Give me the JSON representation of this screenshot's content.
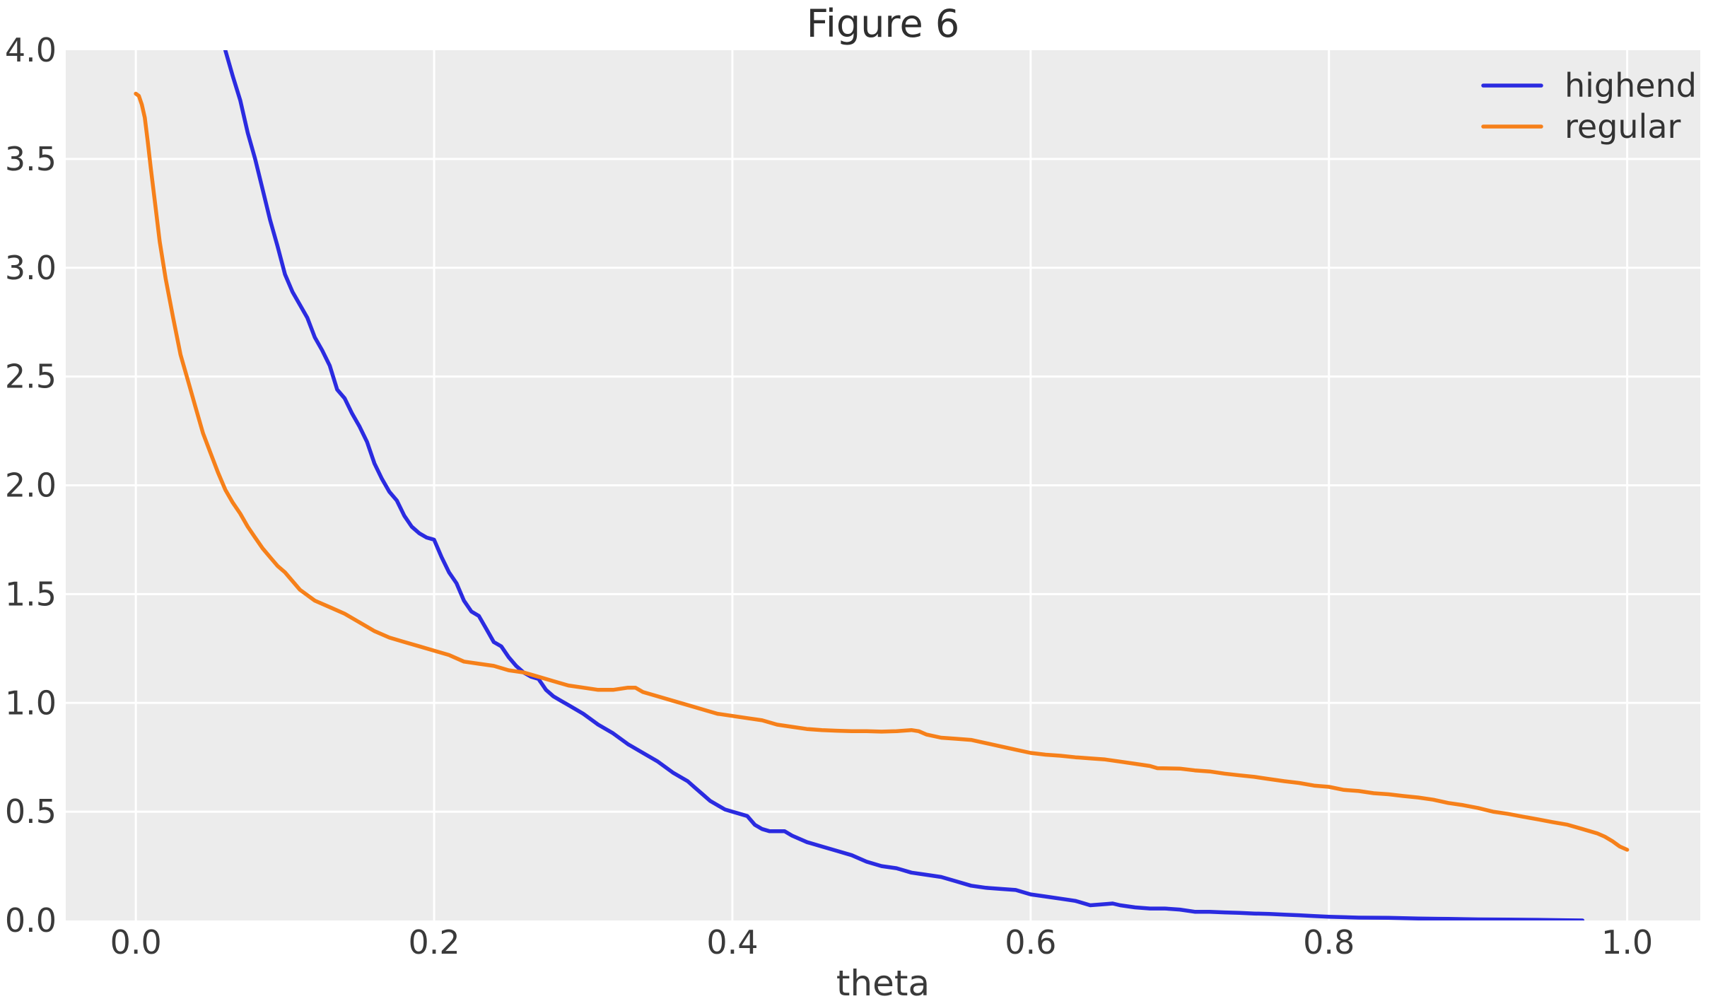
{
  "figure": {
    "title": "Figure 6"
  },
  "chart_data": {
    "type": "line",
    "title": "Figure 6",
    "xlabel": "theta",
    "ylabel": "",
    "xlim": [
      -0.047,
      1.049
    ],
    "ylim": [
      0,
      4
    ],
    "xticks": [
      0.0,
      0.2,
      0.4,
      0.6,
      0.8,
      1.0
    ],
    "yticks": [
      0.0,
      0.5,
      1.0,
      1.5,
      2.0,
      2.5,
      3.0,
      3.5,
      4.0
    ],
    "grid": true,
    "legend_position": "upper right",
    "colors": {
      "plot_bg": "#ececec",
      "grid": "#ffffff",
      "tick_text": "#3a3a3a",
      "title_text": "#2f2f2f"
    },
    "series": [
      {
        "name": "highend",
        "color": "#2b2be0",
        "points": [
          [
            0.057,
            4.1
          ],
          [
            0.06,
            4.0
          ],
          [
            0.065,
            3.88
          ],
          [
            0.07,
            3.77
          ],
          [
            0.075,
            3.62
          ],
          [
            0.08,
            3.5
          ],
          [
            0.085,
            3.36
          ],
          [
            0.09,
            3.22
          ],
          [
            0.095,
            3.1
          ],
          [
            0.1,
            2.97
          ],
          [
            0.105,
            2.89
          ],
          [
            0.11,
            2.83
          ],
          [
            0.115,
            2.77
          ],
          [
            0.12,
            2.68
          ],
          [
            0.125,
            2.62
          ],
          [
            0.13,
            2.55
          ],
          [
            0.135,
            2.44
          ],
          [
            0.14,
            2.4
          ],
          [
            0.145,
            2.33
          ],
          [
            0.15,
            2.27
          ],
          [
            0.155,
            2.2
          ],
          [
            0.16,
            2.1
          ],
          [
            0.165,
            2.03
          ],
          [
            0.17,
            1.97
          ],
          [
            0.175,
            1.93
          ],
          [
            0.18,
            1.86
          ],
          [
            0.185,
            1.81
          ],
          [
            0.19,
            1.78
          ],
          [
            0.195,
            1.76
          ],
          [
            0.2,
            1.75
          ],
          [
            0.205,
            1.67
          ],
          [
            0.21,
            1.6
          ],
          [
            0.215,
            1.55
          ],
          [
            0.22,
            1.47
          ],
          [
            0.225,
            1.42
          ],
          [
            0.23,
            1.4
          ],
          [
            0.235,
            1.34
          ],
          [
            0.24,
            1.28
          ],
          [
            0.245,
            1.26
          ],
          [
            0.25,
            1.21
          ],
          [
            0.255,
            1.17
          ],
          [
            0.26,
            1.14
          ],
          [
            0.265,
            1.12
          ],
          [
            0.27,
            1.11
          ],
          [
            0.275,
            1.06
          ],
          [
            0.28,
            1.03
          ],
          [
            0.285,
            1.01
          ],
          [
            0.29,
            0.99
          ],
          [
            0.3,
            0.95
          ],
          [
            0.31,
            0.9
          ],
          [
            0.32,
            0.86
          ],
          [
            0.33,
            0.81
          ],
          [
            0.34,
            0.77
          ],
          [
            0.35,
            0.73
          ],
          [
            0.36,
            0.68
          ],
          [
            0.365,
            0.66
          ],
          [
            0.37,
            0.64
          ],
          [
            0.375,
            0.61
          ],
          [
            0.38,
            0.58
          ],
          [
            0.385,
            0.55
          ],
          [
            0.39,
            0.53
          ],
          [
            0.395,
            0.51
          ],
          [
            0.4,
            0.5
          ],
          [
            0.405,
            0.49
          ],
          [
            0.41,
            0.48
          ],
          [
            0.415,
            0.44
          ],
          [
            0.42,
            0.42
          ],
          [
            0.425,
            0.41
          ],
          [
            0.43,
            0.41
          ],
          [
            0.435,
            0.41
          ],
          [
            0.44,
            0.39
          ],
          [
            0.45,
            0.36
          ],
          [
            0.46,
            0.34
          ],
          [
            0.47,
            0.32
          ],
          [
            0.48,
            0.3
          ],
          [
            0.49,
            0.27
          ],
          [
            0.5,
            0.25
          ],
          [
            0.51,
            0.24
          ],
          [
            0.52,
            0.22
          ],
          [
            0.53,
            0.21
          ],
          [
            0.54,
            0.2
          ],
          [
            0.55,
            0.18
          ],
          [
            0.56,
            0.16
          ],
          [
            0.57,
            0.15
          ],
          [
            0.58,
            0.145
          ],
          [
            0.59,
            0.14
          ],
          [
            0.6,
            0.12
          ],
          [
            0.61,
            0.11
          ],
          [
            0.62,
            0.1
          ],
          [
            0.63,
            0.09
          ],
          [
            0.64,
            0.07
          ],
          [
            0.65,
            0.075
          ],
          [
            0.655,
            0.078
          ],
          [
            0.66,
            0.07
          ],
          [
            0.67,
            0.06
          ],
          [
            0.68,
            0.055
          ],
          [
            0.69,
            0.055
          ],
          [
            0.7,
            0.05
          ],
          [
            0.71,
            0.04
          ],
          [
            0.72,
            0.04
          ],
          [
            0.73,
            0.037
          ],
          [
            0.74,
            0.035
          ],
          [
            0.75,
            0.032
          ],
          [
            0.76,
            0.03
          ],
          [
            0.77,
            0.027
          ],
          [
            0.78,
            0.024
          ],
          [
            0.79,
            0.02
          ],
          [
            0.8,
            0.017
          ],
          [
            0.82,
            0.013
          ],
          [
            0.84,
            0.012
          ],
          [
            0.86,
            0.009
          ],
          [
            0.88,
            0.007
          ],
          [
            0.9,
            0.005
          ],
          [
            0.92,
            0.004
          ],
          [
            0.94,
            0.003
          ],
          [
            0.96,
            0.001
          ],
          [
            0.97,
            0.0
          ]
        ]
      },
      {
        "name": "regular",
        "color": "#f6801a",
        "points": [
          [
            0.0,
            3.8
          ],
          [
            0.002,
            3.79
          ],
          [
            0.004,
            3.75
          ],
          [
            0.006,
            3.69
          ],
          [
            0.008,
            3.58
          ],
          [
            0.01,
            3.46
          ],
          [
            0.013,
            3.29
          ],
          [
            0.016,
            3.12
          ],
          [
            0.02,
            2.95
          ],
          [
            0.025,
            2.77
          ],
          [
            0.03,
            2.6
          ],
          [
            0.035,
            2.48
          ],
          [
            0.04,
            2.36
          ],
          [
            0.045,
            2.24
          ],
          [
            0.05,
            2.15
          ],
          [
            0.055,
            2.06
          ],
          [
            0.06,
            1.98
          ],
          [
            0.065,
            1.92
          ],
          [
            0.07,
            1.87
          ],
          [
            0.075,
            1.81
          ],
          [
            0.08,
            1.76
          ],
          [
            0.085,
            1.71
          ],
          [
            0.09,
            1.67
          ],
          [
            0.095,
            1.63
          ],
          [
            0.1,
            1.6
          ],
          [
            0.11,
            1.52
          ],
          [
            0.12,
            1.47
          ],
          [
            0.13,
            1.44
          ],
          [
            0.14,
            1.41
          ],
          [
            0.15,
            1.37
          ],
          [
            0.16,
            1.33
          ],
          [
            0.17,
            1.3
          ],
          [
            0.18,
            1.28
          ],
          [
            0.19,
            1.26
          ],
          [
            0.2,
            1.24
          ],
          [
            0.21,
            1.22
          ],
          [
            0.22,
            1.19
          ],
          [
            0.23,
            1.18
          ],
          [
            0.24,
            1.17
          ],
          [
            0.25,
            1.15
          ],
          [
            0.26,
            1.14
          ],
          [
            0.27,
            1.12
          ],
          [
            0.28,
            1.1
          ],
          [
            0.29,
            1.08
          ],
          [
            0.3,
            1.07
          ],
          [
            0.31,
            1.06
          ],
          [
            0.32,
            1.06
          ],
          [
            0.33,
            1.07
          ],
          [
            0.335,
            1.07
          ],
          [
            0.34,
            1.05
          ],
          [
            0.35,
            1.03
          ],
          [
            0.36,
            1.01
          ],
          [
            0.37,
            0.99
          ],
          [
            0.38,
            0.97
          ],
          [
            0.39,
            0.95
          ],
          [
            0.4,
            0.94
          ],
          [
            0.41,
            0.93
          ],
          [
            0.42,
            0.92
          ],
          [
            0.43,
            0.9
          ],
          [
            0.44,
            0.89
          ],
          [
            0.45,
            0.88
          ],
          [
            0.46,
            0.875
          ],
          [
            0.47,
            0.872
          ],
          [
            0.48,
            0.87
          ],
          [
            0.49,
            0.87
          ],
          [
            0.5,
            0.868
          ],
          [
            0.51,
            0.87
          ],
          [
            0.52,
            0.875
          ],
          [
            0.525,
            0.87
          ],
          [
            0.53,
            0.855
          ],
          [
            0.54,
            0.84
          ],
          [
            0.55,
            0.835
          ],
          [
            0.56,
            0.83
          ],
          [
            0.57,
            0.815
          ],
          [
            0.58,
            0.8
          ],
          [
            0.59,
            0.785
          ],
          [
            0.6,
            0.77
          ],
          [
            0.61,
            0.762
          ],
          [
            0.62,
            0.757
          ],
          [
            0.63,
            0.75
          ],
          [
            0.64,
            0.745
          ],
          [
            0.65,
            0.74
          ],
          [
            0.66,
            0.73
          ],
          [
            0.67,
            0.72
          ],
          [
            0.68,
            0.71
          ],
          [
            0.685,
            0.7
          ],
          [
            0.7,
            0.698
          ],
          [
            0.71,
            0.69
          ],
          [
            0.72,
            0.685
          ],
          [
            0.73,
            0.675
          ],
          [
            0.74,
            0.667
          ],
          [
            0.75,
            0.66
          ],
          [
            0.76,
            0.65
          ],
          [
            0.77,
            0.64
          ],
          [
            0.78,
            0.632
          ],
          [
            0.79,
            0.62
          ],
          [
            0.8,
            0.614
          ],
          [
            0.81,
            0.6
          ],
          [
            0.82,
            0.595
          ],
          [
            0.83,
            0.585
          ],
          [
            0.84,
            0.58
          ],
          [
            0.85,
            0.572
          ],
          [
            0.86,
            0.565
          ],
          [
            0.87,
            0.555
          ],
          [
            0.88,
            0.54
          ],
          [
            0.89,
            0.53
          ],
          [
            0.9,
            0.517
          ],
          [
            0.91,
            0.5
          ],
          [
            0.92,
            0.49
          ],
          [
            0.93,
            0.477
          ],
          [
            0.94,
            0.465
          ],
          [
            0.95,
            0.452
          ],
          [
            0.96,
            0.44
          ],
          [
            0.97,
            0.42
          ],
          [
            0.98,
            0.4
          ],
          [
            0.985,
            0.385
          ],
          [
            0.99,
            0.365
          ],
          [
            0.995,
            0.34
          ],
          [
            1.0,
            0.325
          ]
        ]
      }
    ]
  }
}
